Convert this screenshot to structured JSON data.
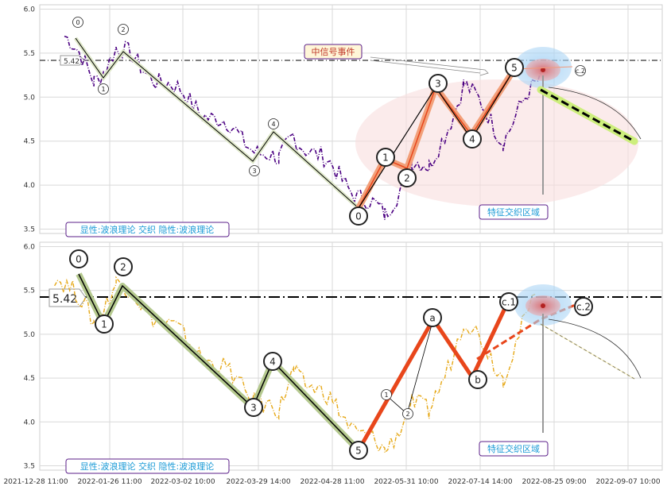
{
  "chart_data": [
    {
      "type": "line",
      "panel": "top",
      "ylim": [
        3.45,
        6.05
      ],
      "yticks": [
        "6.0",
        "5.5",
        "5.0",
        "4.5",
        "4.0",
        "3.5"
      ],
      "reference_line": {
        "value": 5.42,
        "label": "5.42"
      },
      "event_label": "中信号事件",
      "zone_label": "特征交织区域",
      "legend_label": "显性:波浪理论 交织 隐性:波浪理论",
      "price_series_color": "#4b0082",
      "wave_points": [
        {
          "x": 2.0,
          "y": 5.7,
          "label": "0"
        },
        {
          "x": 3.2,
          "y": 5.2,
          "label": "1"
        },
        {
          "x": 4.1,
          "y": 5.55,
          "label": "2"
        },
        {
          "x": 10.7,
          "y": 4.24,
          "label": "3"
        },
        {
          "x": 11.3,
          "y": 4.58,
          "label": "4"
        },
        {
          "x": 15.0,
          "y": 3.63,
          "label": "0"
        },
        {
          "x": 16.1,
          "y": 4.28,
          "label": "1"
        },
        {
          "x": 16.8,
          "y": 4.15,
          "label": "2"
        },
        {
          "x": 18.2,
          "y": 5.15,
          "label": "3"
        },
        {
          "x": 19.8,
          "y": 4.55,
          "label": "4"
        },
        {
          "x": 21.6,
          "y": 5.34,
          "label": "5"
        },
        {
          "x": 24.3,
          "y": 5.28,
          "label": "c.2"
        }
      ]
    },
    {
      "type": "line",
      "panel": "bottom",
      "ylim": [
        3.45,
        6.05
      ],
      "yticks": [
        "6.0",
        "5.5",
        "5.0",
        "4.5",
        "4.0",
        "3.5"
      ],
      "reference_line": {
        "value": 5.42,
        "label": "5.42"
      },
      "zone_label": "特征交织区域",
      "legend_label": "显性:波浪理论 交织 隐性:波浪理论",
      "price_series_color": "#e6a817",
      "wave_points": [
        {
          "x": 1.6,
          "y": 5.72,
          "label": "0"
        },
        {
          "x": 3.2,
          "y": 5.16,
          "label": "1"
        },
        {
          "x": 4.1,
          "y": 5.58,
          "label": "2"
        },
        {
          "x": 10.7,
          "y": 4.07,
          "label": "3"
        },
        {
          "x": 11.3,
          "y": 4.61,
          "label": "4"
        },
        {
          "x": 15.0,
          "y": 3.63,
          "label": "5"
        },
        {
          "x": 16.1,
          "y": 4.24,
          "label": "1"
        },
        {
          "x": 16.8,
          "y": 4.06,
          "label": "2"
        },
        {
          "x": 18.2,
          "y": 5.16,
          "label": "a"
        },
        {
          "x": 19.8,
          "y": 4.56,
          "label": "b"
        },
        {
          "x": 21.1,
          "y": 5.38,
          "label": "c.1"
        },
        {
          "x": 24.3,
          "y": 5.33,
          "label": "c.2"
        }
      ]
    }
  ],
  "x_axis": {
    "tick_labels": [
      "2021-12-28 11:00",
      "2022-01-26 11:00",
      "2022-03-02 10:00",
      "2022-03-29 14:00",
      "2022-04-28 11:00",
      "2022-05-31 10:00",
      "2022-07-14 14:00",
      "2022-08-25 09:00",
      "2022-09-07 10:00"
    ]
  },
  "colors": {
    "grid": "#d9d9d9",
    "pattern": "#000000",
    "pattern_halo": "#b5c98f",
    "projection_orange": "#e8461b",
    "zone_label": "#1a9ad6",
    "legend_border": "#5b1f8a",
    "event_label": "#c0392b"
  }
}
